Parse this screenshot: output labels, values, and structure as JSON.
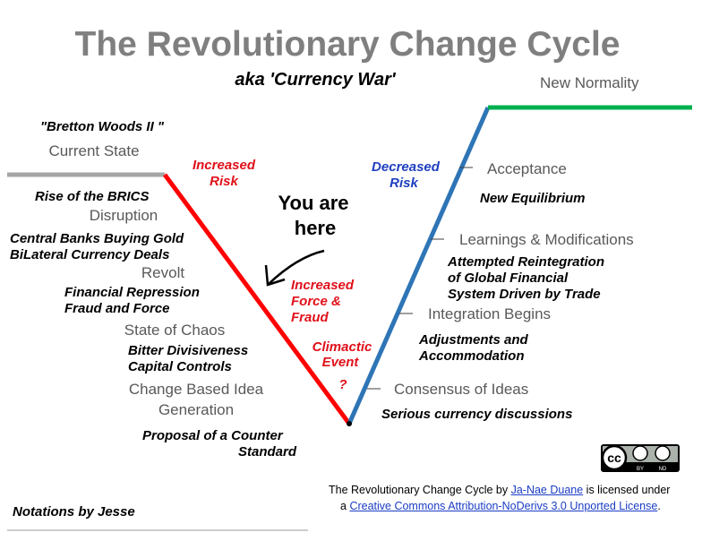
{
  "header": {
    "title": "The Revolutionary Change Cycle",
    "subtitle": "aka 'Currency War'"
  },
  "left": {
    "quote": "\"Bretton Woods II \"",
    "stages": [
      "Current State",
      "Disruption",
      "Revolt",
      "State of Chaos",
      "Change Based Idea",
      "Generation"
    ],
    "notes": [
      "Rise of the BRICS",
      "Central Banks Buying Gold",
      "BiLateral Currency Deals",
      "Financial Repression",
      "Fraud and Force",
      "Bitter Divisiveness",
      "Capital Controls",
      "Proposal of a Counter",
      "Standard"
    ]
  },
  "right": {
    "top": "New Normality",
    "stages": [
      "Acceptance",
      "Learnings & Modifications",
      "Integration Begins",
      "Consensus of Ideas"
    ],
    "notes": [
      "New Equilibrium",
      "Attempted Reintegration",
      "of Global Financial",
      "System Driven by Trade",
      "Adjustments and",
      "Accommodation",
      "Serious currency discussions"
    ]
  },
  "annotations": {
    "increased_risk": [
      "Increased",
      "Risk"
    ],
    "decreased_risk": [
      "Decreased",
      "Risk"
    ],
    "you_are_here": [
      "You are",
      "here"
    ],
    "force": [
      "Increased",
      "Force &",
      "Fraud"
    ],
    "climactic": [
      "Climactic",
      "Event"
    ],
    "question": "?"
  },
  "footer": {
    "credit": "Notations by Jesse",
    "cc": "cc",
    "cc_badge": [
      "BY",
      "ND"
    ],
    "license": {
      "prefix": "The Revolutionary Change Cycle by ",
      "author": "Ja-Nae Duane",
      "mid": " is licensed under",
      "a": "a ",
      "link": "Creative Commons Attribution-NoDerivs 3.0 Unported License",
      "end": "."
    }
  }
}
